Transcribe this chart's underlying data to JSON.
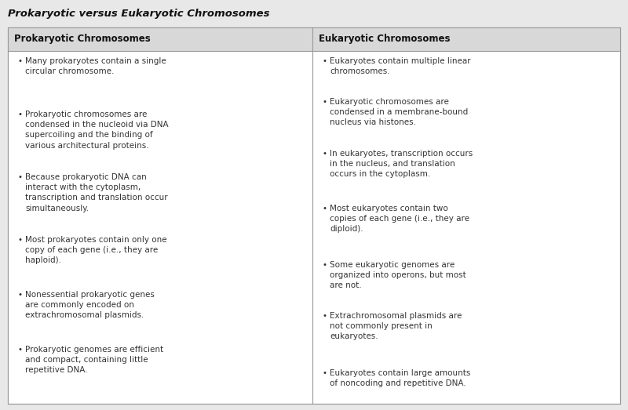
{
  "title": "Prokaryotic versus Eukaryotic Chromosomes",
  "col1_header": "Prokaryotic Chromosomes",
  "col2_header": "Eukaryotic Chromosomes",
  "col1_items": [
    "Many prokaryotes contain a single\ncircular chromosome.",
    "Prokaryotic chromosomes are\ncondensed in the nucleoid via DNA\nsupercoiling and the binding of\nvarious architectural proteins.",
    "Because prokaryotic DNA can\ninteract with the cytoplasm,\ntranscription and translation occur\nsimultaneously.",
    "Most prokaryotes contain only one\ncopy of each gene (i.e., they are\nhaploid).",
    "Nonessential prokaryotic genes\nare commonly encoded on\nextrachromosomal plasmids.",
    "Prokaryotic genomes are efficient\nand compact, containing little\nrepetitive DNA."
  ],
  "col2_items": [
    "Eukaryotes contain multiple linear\nchromosomes.",
    "Eukaryotic chromosomes are\ncondensed in a membrane-bound\nnucleus via histones.",
    "In eukaryotes, transcription occurs\nin the nucleus, and translation\noccurs in the cytoplasm.",
    "Most eukaryotes contain two\ncopies of each gene (i.e., they are\ndiploid).",
    "Some eukaryotic genomes are\norganized into operons, but most\nare not.",
    "Extrachromosomal plasmids are\nnot commonly present in\neukaryotes.",
    "Eukaryotes contain large amounts\nof noncoding and repetitive DNA."
  ],
  "bg_color": "#e8e8e8",
  "table_bg": "#ffffff",
  "header_bg": "#d8d8d8",
  "border_color": "#999999",
  "title_color": "#111111",
  "header_color": "#111111",
  "text_color": "#333333",
  "title_fontsize": 9.5,
  "header_fontsize": 8.5,
  "body_fontsize": 7.5
}
